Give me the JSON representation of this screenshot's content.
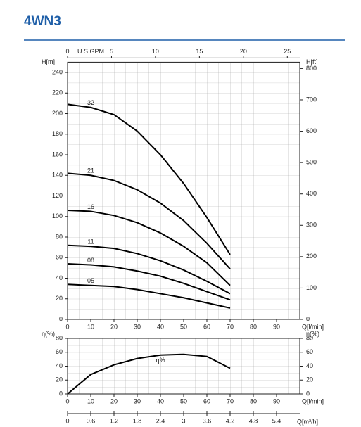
{
  "chart_data": [
    {
      "type": "line",
      "title": "4WN3",
      "xlabel": "Q[l/min]",
      "ylabel": "H[m]",
      "y2label": "H[ft]",
      "x2label": "U.S.GPM",
      "x": [
        0,
        10,
        20,
        30,
        40,
        50,
        60,
        70
      ],
      "xlim": [
        0,
        100
      ],
      "xticks": [
        0,
        10,
        20,
        30,
        40,
        50,
        60,
        70,
        80,
        90
      ],
      "x2lim": [
        0,
        26.417
      ],
      "x2ticks": [
        0,
        5,
        10,
        15,
        20,
        25
      ],
      "ylim": [
        0,
        250
      ],
      "yticks": [
        0,
        20,
        40,
        60,
        80,
        100,
        120,
        140,
        160,
        180,
        200,
        220,
        240
      ],
      "y2lim": [
        0,
        820.21
      ],
      "y2ticks": [
        0,
        100,
        200,
        300,
        400,
        500,
        600,
        700,
        800
      ],
      "grid": true,
      "series": [
        {
          "name": "32",
          "color": "#000000",
          "values": [
            209,
            206,
            199,
            183,
            160,
            132,
            99,
            63
          ]
        },
        {
          "name": "21",
          "color": "#000000",
          "values": [
            142,
            140,
            135,
            126,
            113,
            96,
            74,
            49
          ]
        },
        {
          "name": "16",
          "color": "#000000",
          "values": [
            106,
            105,
            101,
            94,
            84,
            71,
            55,
            33
          ]
        },
        {
          "name": "11",
          "color": "#000000",
          "values": [
            72,
            71,
            69,
            64,
            57,
            48,
            37,
            25
          ]
        },
        {
          "name": "08",
          "color": "#000000",
          "values": [
            54,
            53,
            51,
            47,
            42,
            35,
            27,
            19
          ]
        },
        {
          "name": "05",
          "color": "#000000",
          "values": [
            34,
            33,
            32,
            29,
            25,
            21,
            16,
            11
          ]
        }
      ]
    },
    {
      "type": "line",
      "xlabel": "Q[l/min]",
      "ylabel": "η(%)",
      "y2label": "η(%)",
      "x3label": "Q[m³/h]",
      "x": [
        0,
        10,
        20,
        30,
        40,
        50,
        60,
        70
      ],
      "xlim": [
        0,
        100
      ],
      "xticks": [
        0,
        10,
        20,
        30,
        40,
        50,
        60,
        70,
        80,
        90
      ],
      "x3lim": [
        0,
        6
      ],
      "x3ticks": [
        0,
        0.6,
        1.2,
        1.8,
        2.4,
        3,
        3.6,
        4.2,
        4.8,
        5.4
      ],
      "ylim": [
        0,
        80
      ],
      "yticks": [
        0,
        20,
        40,
        60,
        80
      ],
      "y2lim": [
        0,
        80
      ],
      "y2ticks": [
        0,
        20,
        40,
        60,
        80
      ],
      "grid": true,
      "series": [
        {
          "name": "η%",
          "color": "#000000",
          "values": [
            0,
            28,
            42,
            51,
            56,
            57,
            54,
            37
          ]
        }
      ]
    }
  ]
}
